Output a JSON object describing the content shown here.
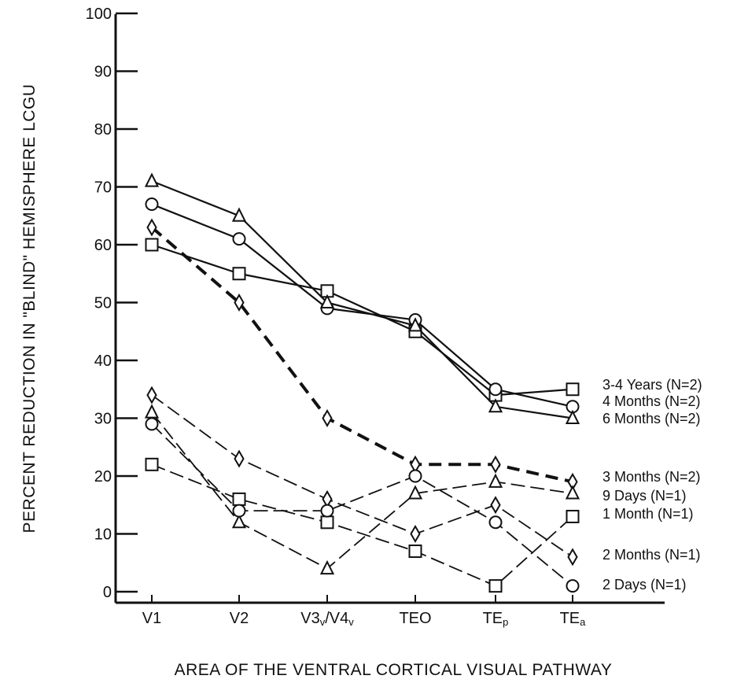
{
  "chart_data": {
    "type": "line",
    "title": "",
    "xlabel": "AREA OF THE VENTRAL CORTICAL VISUAL PATHWAY",
    "ylabel": "PERCENT REDUCTION IN \"BLIND\" HEMISPHERE LCGU",
    "ylim": [
      0,
      100
    ],
    "yticks": [
      0,
      10,
      20,
      30,
      40,
      50,
      60,
      70,
      80,
      90,
      100
    ],
    "categories": [
      {
        "main": "V1",
        "sub": ""
      },
      {
        "main": "V2",
        "sub": ""
      },
      {
        "main": "V3",
        "sub": "v",
        "main2": "/V4",
        "sub2": "v"
      },
      {
        "main": "TEO",
        "sub": ""
      },
      {
        "main": "TE",
        "sub": "p"
      },
      {
        "main": "TE",
        "sub": "a"
      }
    ],
    "grid": false,
    "series": [
      {
        "name": "3-4 Years (N=2)",
        "marker": "square",
        "line": "solid",
        "values": [
          60,
          55,
          52,
          45,
          34,
          35
        ]
      },
      {
        "name": "4 Months (N=2)",
        "marker": "circle",
        "line": "solid",
        "values": [
          67,
          61,
          49,
          47,
          35,
          32
        ]
      },
      {
        "name": "6 Months (N=2)",
        "marker": "triangle",
        "line": "solid",
        "values": [
          71,
          65,
          50,
          46,
          32,
          30
        ]
      },
      {
        "name": "3 Months (N=2)",
        "marker": "diamond",
        "line": "bold-dashed",
        "values": [
          63,
          50,
          30,
          22,
          22,
          19
        ]
      },
      {
        "name": "9 Days (N=1)",
        "marker": "triangle",
        "line": "dashed",
        "values": [
          31,
          12,
          4,
          17,
          19,
          17
        ]
      },
      {
        "name": "1 Month (N=1)",
        "marker": "square",
        "line": "dashed",
        "values": [
          22,
          16,
          12,
          7,
          1,
          13
        ]
      },
      {
        "name": "2 Months (N=1)",
        "marker": "diamond",
        "line": "dashed",
        "values": [
          34,
          23,
          16,
          10,
          15,
          6
        ]
      },
      {
        "name": "2 Days (N=1)",
        "marker": "circle",
        "line": "dashed",
        "values": [
          29,
          14,
          14,
          20,
          12,
          1
        ]
      }
    ],
    "legend_placement": "right",
    "colors": {
      "ink": "#111111",
      "background": "#ffffff"
    }
  }
}
